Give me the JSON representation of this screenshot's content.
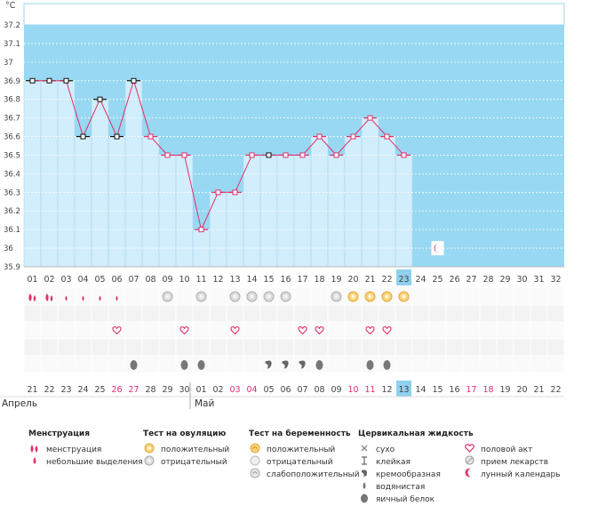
{
  "chart_data": {
    "type": "line",
    "title": "",
    "unit_label": "°C",
    "ylabel": "°C",
    "xlabel": "",
    "ylim": [
      35.9,
      37.2
    ],
    "y_ticks": [
      "37.2",
      "37.1",
      "37",
      "36.9",
      "36.8",
      "36.7",
      "36.6",
      "36.5",
      "36.4",
      "36.3",
      "36.2",
      "36.1",
      "36",
      "35.9"
    ],
    "cycle_days": [
      "01",
      "02",
      "03",
      "04",
      "05",
      "06",
      "07",
      "08",
      "09",
      "10",
      "11",
      "12",
      "13",
      "14",
      "15",
      "16",
      "17",
      "18",
      "19",
      "20",
      "21",
      "22",
      "23",
      "24",
      "25",
      "26",
      "27",
      "28",
      "29",
      "30",
      "31",
      "32"
    ],
    "current_day_index": 22,
    "temperatures": [
      36.9,
      36.9,
      36.9,
      36.6,
      36.8,
      36.6,
      36.9,
      36.6,
      36.5,
      36.5,
      36.1,
      36.3,
      36.3,
      36.5,
      36.5,
      36.5,
      36.5,
      36.6,
      36.5,
      36.6,
      36.7,
      36.6,
      36.5
    ],
    "point_style": [
      "black",
      "black",
      "black",
      "black",
      "black",
      "black",
      "black",
      "pink",
      "pink",
      "pink",
      "pink",
      "pink",
      "pink",
      "pink",
      "black",
      "pink",
      "pink",
      "pink",
      "pink",
      "pink",
      "pink",
      "pink",
      "pink"
    ],
    "lunar_marker_day_index": 24,
    "calendar_dates": [
      "21",
      "22",
      "23",
      "24",
      "25",
      "26",
      "27",
      "28",
      "29",
      "30",
      "01",
      "02",
      "03",
      "04",
      "05",
      "06",
      "07",
      "08",
      "09",
      "10",
      "11",
      "12",
      "13",
      "14",
      "15",
      "16",
      "17",
      "18",
      "19",
      "20",
      "21",
      "22"
    ],
    "weekend_indices": [
      5,
      6,
      12,
      13,
      19,
      20,
      26,
      27
    ],
    "months": [
      {
        "label": "Апрель",
        "start_index": 0
      },
      {
        "label": "Май",
        "start_index": 10
      }
    ],
    "series": [
      {
        "name": "менструация",
        "days": [
          0,
          1
        ]
      },
      {
        "name": "небольшие выделения",
        "days": [
          2,
          3,
          4,
          5
        ]
      },
      {
        "name": "тест на овуляцию: отрицательный",
        "days": [
          8,
          10,
          12,
          13,
          14,
          15,
          18
        ]
      },
      {
        "name": "тест на овуляцию: положительный",
        "days": [
          19,
          20,
          21,
          22
        ]
      },
      {
        "name": "половой акт",
        "days": [
          5,
          9,
          12,
          16,
          17,
          20,
          21
        ]
      },
      {
        "name": "кремообразная",
        "days": [
          14,
          15,
          16
        ]
      },
      {
        "name": "яичный белок",
        "days": [
          6,
          9,
          10,
          17,
          20,
          21
        ]
      }
    ]
  },
  "legend": {
    "groups": [
      {
        "title": "Менструация",
        "items": [
          {
            "icon": "menstruation-drop-icon",
            "label": "менструация"
          },
          {
            "icon": "spotting-drop-icon",
            "label": "небольшие выделения"
          }
        ]
      },
      {
        "title": "Тест на овуляцию",
        "items": [
          {
            "icon": "positive-test-icon",
            "label": "положительный"
          },
          {
            "icon": "negative-test-icon",
            "label": "отрицательный"
          }
        ]
      },
      {
        "title": "Тест на беременность",
        "items": [
          {
            "icon": "pregnancy-positive-icon",
            "label": "положительный"
          },
          {
            "icon": "pregnancy-negative-icon",
            "label": "отрицательный"
          },
          {
            "icon": "pregnancy-weak-icon",
            "label": "слабоположительный"
          }
        ]
      },
      {
        "title": "Цервикальная жидкость",
        "items": [
          {
            "icon": "dry-x-icon",
            "label": "сухо"
          },
          {
            "icon": "sticky-icon",
            "label": "клейкая"
          },
          {
            "icon": "creamy-icon",
            "label": "кремообразная"
          },
          {
            "icon": "watery-drop-icon",
            "label": "водянистая"
          },
          {
            "icon": "egg-white-icon",
            "label": "яичный белок"
          }
        ]
      },
      {
        "title": "",
        "items": [
          {
            "icon": "heart-icon",
            "label": "половой акт"
          },
          {
            "icon": "pill-icon",
            "label": "прием лекарств"
          },
          {
            "icon": "moon-icon",
            "label": "лунный календарь"
          }
        ]
      }
    ]
  },
  "colors": {
    "sky": "#98d8f2",
    "bar": "#d2edfb",
    "bar_stroke": "#a6d8f0",
    "line": "#e0306a",
    "highlight": "#8fd1ee",
    "weekend": "#e0306a"
  }
}
